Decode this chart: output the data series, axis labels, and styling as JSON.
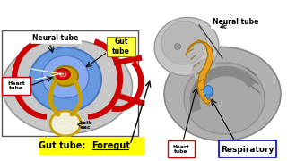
{
  "bg_color": "#ffffff",
  "neural_tube_label": "Neural tube",
  "gut_tube_label": "Gut\ntube",
  "heart_tube_label": "Heart\ntube",
  "yolk_sac_label": "Yolk\nsac",
  "neural_tube_label2": "Neural tube",
  "gut_tube_foregut_label": "Gut tube:  Foregut",
  "heart_tube_label2": "Heart\ntube",
  "respiratory_label": "Respiratory",
  "gut_tube_box_color": "#ffff00",
  "label_box_red": "#cc0000",
  "label_box_blue": "#0000cc"
}
